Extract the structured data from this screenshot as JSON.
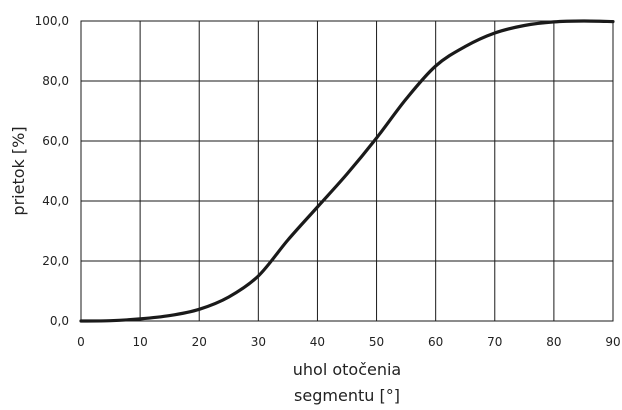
{
  "chart_data": {
    "type": "line",
    "xlabel_lines": [
      "uhol otočenia",
      "segmentu [°]"
    ],
    "ylabel": "prietok [%]",
    "xlim": [
      0,
      90
    ],
    "ylim": [
      0,
      100
    ],
    "x_ticks": [
      0,
      10,
      20,
      30,
      40,
      50,
      60,
      70,
      80,
      90
    ],
    "y_ticks": [
      0,
      20,
      40,
      60,
      80,
      100
    ],
    "x_tick_labels": [
      "0",
      "10",
      "20",
      "30",
      "40",
      "50",
      "60",
      "70",
      "80",
      "90"
    ],
    "y_tick_labels": [
      "0,0",
      "20,0",
      "40,0",
      "60,0",
      "80,0",
      "100,0"
    ],
    "grid": true,
    "legend": "none",
    "series": [
      {
        "color": "#1a1a1a",
        "x": [
          0,
          5,
          10,
          15,
          20,
          25,
          30,
          35,
          40,
          45,
          50,
          55,
          60,
          65,
          70,
          75,
          80,
          85,
          90
        ],
        "y": [
          0,
          0.1,
          0.7,
          1.8,
          3.9,
          8.0,
          15.0,
          27.0,
          38.0,
          49.0,
          61.0,
          74.0,
          85.0,
          91.5,
          96.0,
          98.5,
          99.7,
          100.0,
          99.8
        ]
      }
    ]
  }
}
